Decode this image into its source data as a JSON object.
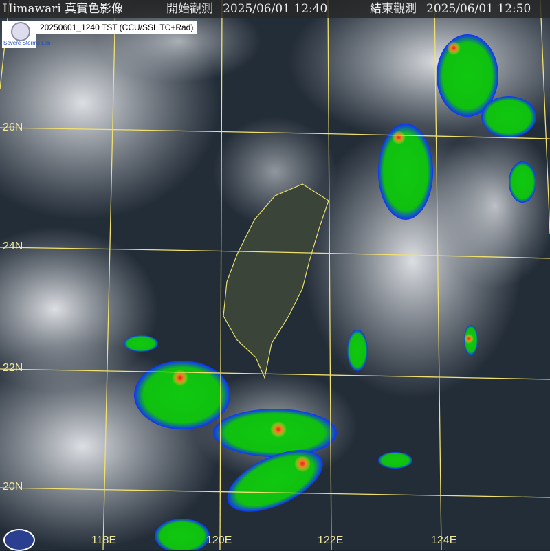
{
  "header": {
    "title": "Himawari 真實色影像",
    "start_label": "開始觀測",
    "start_time": "2025/06/01 12:40",
    "end_label": "結束觀測",
    "end_time": "2025/06/01 12:50"
  },
  "stamp": "20250601_1240 TST (CCU/SSL TC+Rad)",
  "logo": {
    "lab_text": "Severe Storms Lab"
  },
  "grid": {
    "lat_labels": [
      "26N",
      "24N",
      "22N",
      "20N"
    ],
    "lon_labels": [
      "118E",
      "120E",
      "122E",
      "124E"
    ],
    "color": "#f0e070"
  },
  "radar_colors": [
    "#1030ff",
    "#10c810",
    "#f0e020",
    "#f08020",
    "#e02020"
  ]
}
